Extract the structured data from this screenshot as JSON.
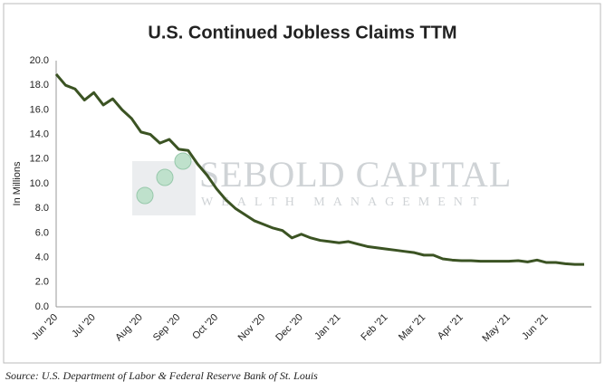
{
  "chart_data": {
    "type": "line",
    "title": "U.S. Continued Jobless Claims TTM",
    "y_label": "In Millions",
    "source": "Source: U.S. Department of Labor & Federal Reserve Bank of St. Louis",
    "watermark": [
      "SEBOLD CAPITAL",
      "WEALTH MANAGEMENT"
    ],
    "categories": [
      "Jun '20",
      null,
      null,
      null,
      "Jul '20",
      null,
      null,
      null,
      null,
      "Aug '20",
      null,
      null,
      null,
      "Sep '20",
      null,
      null,
      null,
      "Oct '20",
      null,
      null,
      null,
      null,
      "Nov '20",
      null,
      null,
      null,
      "Dec '20",
      null,
      null,
      null,
      "Jan '21",
      null,
      null,
      null,
      null,
      "Feb '21",
      null,
      null,
      null,
      "Mar '21",
      null,
      null,
      null,
      "Apr '21",
      null,
      null,
      null,
      null,
      "May '21",
      null,
      null,
      null,
      "Jun '21",
      null,
      null,
      null,
      null
    ],
    "series": [
      {
        "name": "Continued Jobless Claims",
        "color": "#3b5323",
        "values": [
          18.9,
          18.0,
          17.7,
          16.8,
          17.4,
          16.4,
          16.9,
          16.0,
          15.3,
          14.2,
          14.0,
          13.3,
          13.6,
          12.8,
          12.7,
          11.6,
          10.7,
          9.6,
          8.7,
          8.0,
          7.5,
          7.0,
          6.7,
          6.4,
          6.2,
          5.6,
          5.9,
          5.6,
          5.4,
          5.3,
          5.2,
          5.3,
          5.1,
          4.9,
          4.8,
          4.7,
          4.6,
          4.5,
          4.4,
          4.2,
          4.2,
          3.9,
          3.8,
          3.75,
          3.75,
          3.7,
          3.7,
          3.7,
          3.7,
          3.75,
          3.65,
          3.8,
          3.6,
          3.6,
          3.5,
          3.45,
          3.45
        ]
      }
    ],
    "ylim": [
      0,
      20
    ],
    "yticks": [
      {
        "value": 0,
        "label": "0.0"
      },
      {
        "value": 2,
        "label": "2.0"
      },
      {
        "value": 4,
        "label": "4.0"
      },
      {
        "value": 6,
        "label": "6.0"
      },
      {
        "value": 8,
        "label": "8.0"
      },
      {
        "value": 10,
        "label": "10.0"
      },
      {
        "value": 12,
        "label": "12.0"
      },
      {
        "value": 14,
        "label": "14.0"
      },
      {
        "value": 16,
        "label": "16.0"
      },
      {
        "value": 18,
        "label": "18.0"
      },
      {
        "value": 20,
        "label": "20.0"
      }
    ],
    "grid": false
  }
}
